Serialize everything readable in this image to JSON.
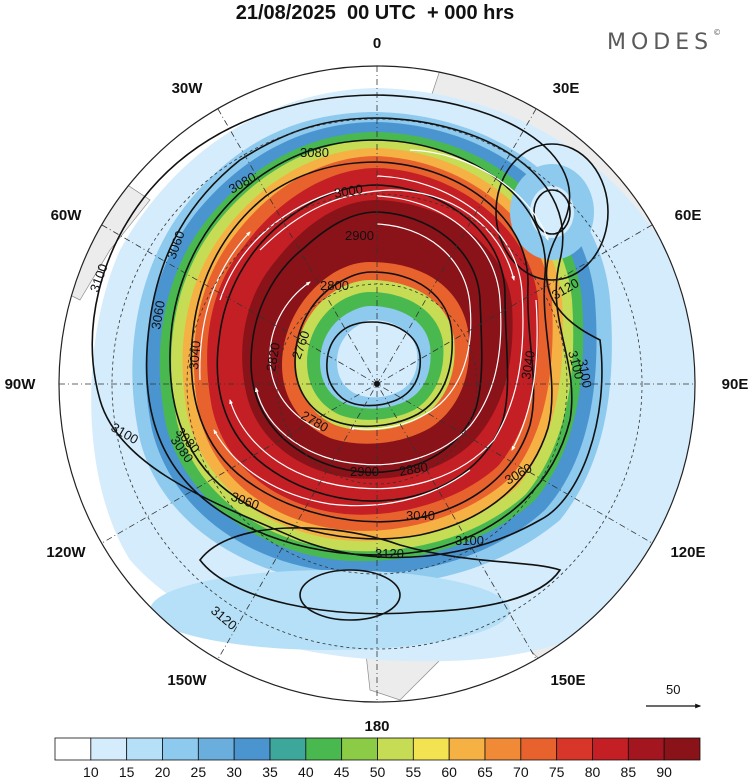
{
  "title": "21/08/2025  00 UTC  + 000 hrs",
  "brand": "MODES",
  "brand_mark": "©",
  "map": {
    "projection": "north-polar-stereographic",
    "background": "#ffffff",
    "land_color": "#ececec",
    "longitude_labels": [
      "0",
      "30E",
      "60E",
      "90E",
      "120E",
      "150E",
      "180",
      "150W",
      "120W",
      "90W",
      "60W",
      "30W"
    ],
    "contour_labels": [
      "3080",
      "3080",
      "3060",
      "3100",
      "3060",
      "3040",
      "3000",
      "2900",
      "2800",
      "2760",
      "2820",
      "3100",
      "3100",
      "3120",
      "3040",
      "3060",
      "3080",
      "3100",
      "3120",
      "3120",
      "3100",
      "3080",
      "3060",
      "2780",
      "2880",
      "2900",
      "3040"
    ],
    "vector_reference": "50"
  },
  "colorbar": {
    "ticks": [
      "10",
      "15",
      "20",
      "25",
      "30",
      "35",
      "40",
      "45",
      "50",
      "55",
      "60",
      "65",
      "70",
      "75",
      "80",
      "85",
      "90"
    ],
    "colors": [
      "#ffffff",
      "#d4ecfb",
      "#b6e0f7",
      "#8ec9ee",
      "#6aaede",
      "#4a95d0",
      "#3ea79c",
      "#49b94f",
      "#8ccb46",
      "#c6dc55",
      "#f4e350",
      "#f5b143",
      "#f08a37",
      "#e8622e",
      "#d9362a",
      "#c41f24",
      "#a3151f",
      "#8a1219"
    ]
  }
}
